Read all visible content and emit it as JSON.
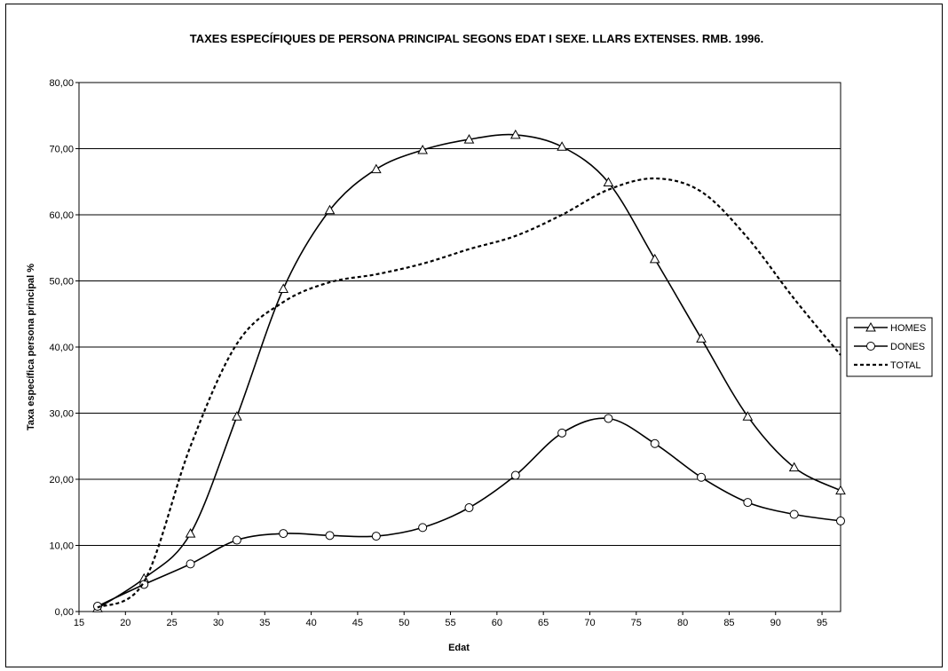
{
  "chart_data": {
    "type": "line",
    "title": "TAXES ESPECÍFIQUES DE PERSONA PRINCIPAL SEGONS EDAT I SEXE. LLARS EXTENSES. RMB. 1996.",
    "xlabel": "Edat",
    "ylabel": "Taxa específica persona principal %",
    "xlim": [
      15,
      97
    ],
    "ylim": [
      0,
      80
    ],
    "x_ticks": [
      "15",
      "20",
      "25",
      "30",
      "35",
      "40",
      "45",
      "50",
      "55",
      "60",
      "65",
      "70",
      "75",
      "80",
      "85",
      "90",
      "95"
    ],
    "y_ticks": [
      "0,00",
      "10,00",
      "20,00",
      "30,00",
      "40,00",
      "50,00",
      "60,00",
      "70,00",
      "80,00"
    ],
    "grid": "horizontal",
    "legend_position": "right",
    "x": [
      17,
      22,
      27,
      32,
      37,
      42,
      47,
      52,
      57,
      62,
      67,
      72,
      77,
      82,
      87,
      92,
      97
    ],
    "series": [
      {
        "name": "HOMES",
        "marker": "triangle",
        "style": "solid",
        "values": [
          0.5,
          5.0,
          11.8,
          29.5,
          48.8,
          60.7,
          66.9,
          69.8,
          71.4,
          72.1,
          70.3,
          64.9,
          53.3,
          41.3,
          29.5,
          21.8,
          18.3
        ]
      },
      {
        "name": "DONES",
        "marker": "circle",
        "style": "solid",
        "values": [
          0.8,
          4.1,
          7.2,
          10.8,
          11.8,
          11.5,
          11.4,
          12.7,
          15.7,
          20.6,
          27.0,
          29.2,
          25.4,
          20.3,
          16.5,
          14.7,
          13.7
        ]
      },
      {
        "name": "TOTAL",
        "marker": "none",
        "style": "dashed",
        "values": [
          0.6,
          4.5,
          25.0,
          40.5,
          46.8,
          49.8,
          51.0,
          52.6,
          54.8,
          56.8,
          60.0,
          63.8,
          65.5,
          63.5,
          56.5,
          47.3,
          38.8
        ]
      }
    ]
  }
}
